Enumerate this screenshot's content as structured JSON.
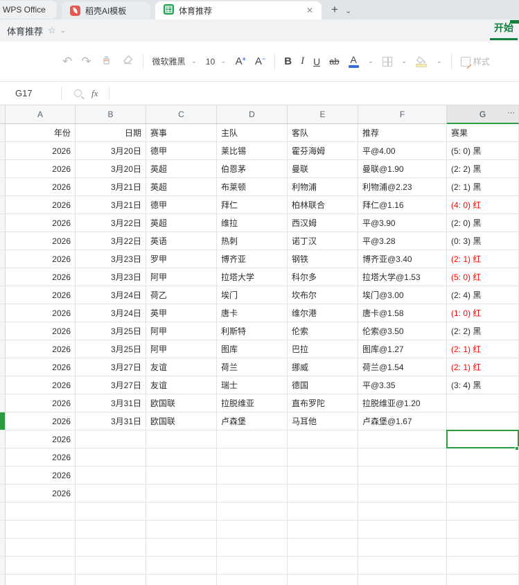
{
  "window": {
    "tabs": [
      {
        "label": "WPS Office",
        "type": "app"
      },
      {
        "label": "稻壳AI模板",
        "type": "inactive",
        "icon": "docer-icon"
      },
      {
        "label": "体育推荐",
        "type": "active",
        "icon": "spreadsheet-icon",
        "close": "✕"
      }
    ],
    "new_tab_label": "+",
    "tab_menu_chevron": "⌄"
  },
  "titlebar": {
    "doc_title": "体育推荐",
    "star_icon": "☆",
    "chevron": "⌄",
    "ribbon_tab": "开始"
  },
  "toolbar": {
    "undo_icon": "↶",
    "redo_icon": "↷",
    "font_name": "微软雅黑",
    "font_size": "10",
    "increase_font": "A",
    "decrease_font": "A",
    "bold_label": "B",
    "italic_label": "I",
    "underline_label": "U",
    "strikethrough_label": "ab",
    "font_color_label": "A",
    "style_label": "样式",
    "chevron": "⌄"
  },
  "formula_bar": {
    "cell_ref": "G17",
    "fx_label": "fx"
  },
  "colors": {
    "brand_green": "#12813e",
    "selection_green": "#2b9c3f",
    "result_red": "#ff0000",
    "font_color_blue": "#3a6fd8",
    "fill_yellow": "#f5f0a8"
  },
  "sheet": {
    "column_letters": [
      "A",
      "B",
      "C",
      "D",
      "E",
      "F",
      "G"
    ],
    "more_indicator": "⋯",
    "headers": [
      "年份",
      "日期",
      "赛事",
      "主队",
      "客队",
      "推荐",
      "赛果"
    ],
    "rows": [
      {
        "year": "2026",
        "date": "3月20日",
        "league": "德甲",
        "home": "莱比锡",
        "away": "霍芬海姆",
        "tip": "平@4.00",
        "result": "(5: 0) 黑",
        "result_color": "black"
      },
      {
        "year": "2026",
        "date": "3月20日",
        "league": "英超",
        "home": "伯恩茅",
        "away": "曼联",
        "tip": "曼联@1.90",
        "result": "(2: 2) 黑",
        "result_color": "black"
      },
      {
        "year": "2026",
        "date": "3月21日",
        "league": "英超",
        "home": "布莱顿",
        "away": "利物浦",
        "tip": "利物浦@2.23",
        "result": "(2: 1) 黑",
        "result_color": "black"
      },
      {
        "year": "2026",
        "date": "3月21日",
        "league": "德甲",
        "home": "拜仁",
        "away": "柏林联合",
        "tip": "拜仁@1.16",
        "result": "(4: 0) 红",
        "result_color": "red"
      },
      {
        "year": "2026",
        "date": "3月22日",
        "league": "英超",
        "home": "维拉",
        "away": "西汉姆",
        "tip": "平@3.90",
        "result": "(2: 0) 黑",
        "result_color": "black"
      },
      {
        "year": "2026",
        "date": "3月22日",
        "league": "英语",
        "home": "热刺",
        "away": "诺丁汉",
        "tip": "平@3.28",
        "result": "(0: 3) 黑",
        "result_color": "black"
      },
      {
        "year": "2026",
        "date": "3月23日",
        "league": "罗甲",
        "home": "博齐亚",
        "away": "钢铁",
        "tip": "博齐亚@3.40",
        "result": "(2: 1) 红",
        "result_color": "red"
      },
      {
        "year": "2026",
        "date": "3月23日",
        "league": "阿甲",
        "home": "拉塔大学",
        "away": "科尔多",
        "tip": "拉塔大学@1.53",
        "result": "(5: 0) 红",
        "result_color": "red"
      },
      {
        "year": "2026",
        "date": "3月24日",
        "league": "荷乙",
        "home": "埃门",
        "away": "坎布尔",
        "tip": "埃门@3.00",
        "result": "(2: 4) 黑",
        "result_color": "black"
      },
      {
        "year": "2026",
        "date": "3月24日",
        "league": "英甲",
        "home": "唐卡",
        "away": "维尔港",
        "tip": "唐卡@1.58",
        "result": "(1: 0) 红",
        "result_color": "red"
      },
      {
        "year": "2026",
        "date": "3月25日",
        "league": "阿甲",
        "home": "利斯特",
        "away": "伦索",
        "tip": "伦索@3.50",
        "result": "(2: 2) 黑",
        "result_color": "black"
      },
      {
        "year": "2026",
        "date": "3月25日",
        "league": "阿甲",
        "home": "图库",
        "away": "巴拉",
        "tip": "图库@1.27",
        "result": "(2: 1) 红",
        "result_color": "red"
      },
      {
        "year": "2026",
        "date": "3月27日",
        "league": "友谊",
        "home": "荷兰",
        "away": "挪威",
        "tip": "荷兰@1.54",
        "result": "(2: 1) 红",
        "result_color": "red"
      },
      {
        "year": "2026",
        "date": "3月27日",
        "league": "友谊",
        "home": "瑞士",
        "away": "德国",
        "tip": "平@3.35",
        "result": "(3: 4) 黑",
        "result_color": "black"
      },
      {
        "year": "2026",
        "date": "3月31日",
        "league": "欧国联",
        "home": "拉脱维亚",
        "away": "直布罗陀",
        "tip": "拉脱维亚@1.20",
        "result": "",
        "result_color": "black"
      },
      {
        "year": "2026",
        "date": "3月31日",
        "league": "欧国联",
        "home": "卢森堡",
        "away": "马耳他",
        "tip": "卢森堡@1.67",
        "result": "",
        "result_color": "black"
      }
    ],
    "year_only_rows": [
      "2026",
      "2026",
      "2026",
      "2026"
    ],
    "empty_row_count": 5,
    "selection": {
      "cell": "G17",
      "row_index": 16,
      "col_index": 6
    }
  }
}
